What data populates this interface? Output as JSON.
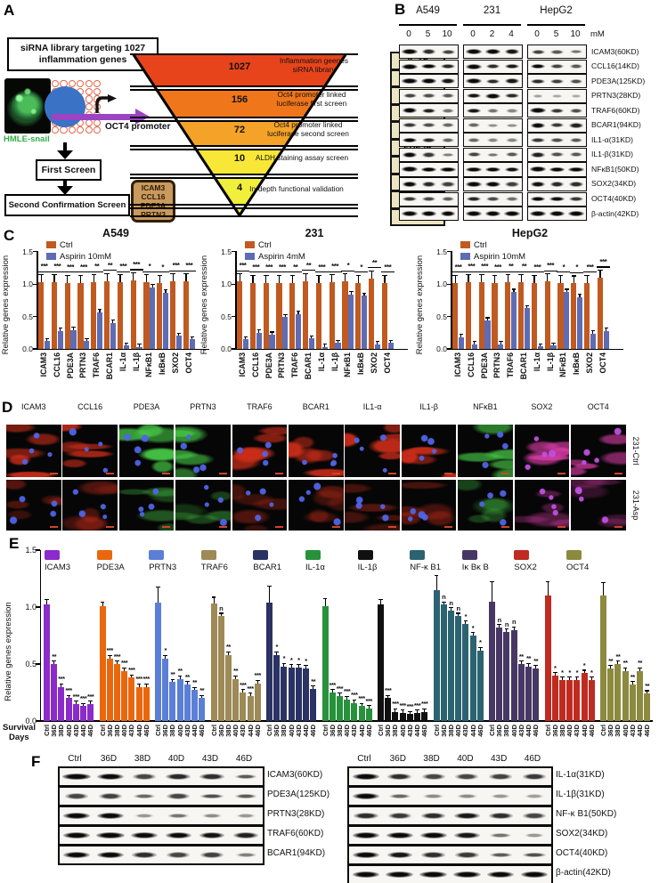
{
  "panels": {
    "A": "A",
    "B": "B",
    "C": "C",
    "D": "D",
    "E": "E",
    "F": "F"
  },
  "panelA": {
    "library_box": [
      "siRNA library targeting 1027",
      "inflammation genes"
    ],
    "cell_label": "HMLE-snail",
    "promoter_label": "OCT4 promoter",
    "flow": [
      "First Screen",
      "Second Confirmation Screen"
    ],
    "hit_box": [
      "ICAM3",
      "CCL16",
      "PDE3A",
      "PRTN3"
    ],
    "funnel": {
      "colors": [
        "#e8441b",
        "#f0761b",
        "#f4a328",
        "#f8e737",
        "#f0ef3b"
      ],
      "levels": [
        {
          "count": "1027",
          "desc": "Inflammation geenes siRNA library"
        },
        {
          "count": "156",
          "desc": "Oct4 promoter linked luciferase first screen"
        },
        {
          "count": "72",
          "desc": "Oct4 promoter linked luciferase second  screen"
        },
        {
          "count": "10",
          "desc": "ALDH staining assay screen"
        },
        {
          "count": "4",
          "desc": "In-depth functional validation"
        }
      ]
    },
    "gene_list": [
      "IL-1α",
      "IL-1β",
      "ICAM3",
      "CCL16",
      "TRAF6",
      "PDE3A",
      "PRTN3",
      "NFκB1",
      "IκBκB",
      "BCAR1"
    ]
  },
  "panelB": {
    "cell_lines": [
      "A549",
      "231",
      "HepG2"
    ],
    "doses": [
      [
        "0",
        "5",
        "10"
      ],
      [
        "0",
        "2",
        "4"
      ],
      [
        "0",
        "5",
        "10"
      ]
    ],
    "dose_unit": "mM",
    "rows": [
      {
        "label": "ICAM3(60KD)",
        "bands": [
          0.92,
          0.6,
          0.5,
          0.92,
          0.85,
          0.7,
          0.5,
          0.42,
          0.3
        ]
      },
      {
        "label": "CCL16(14KD)",
        "bands": [
          0.9,
          0.8,
          0.62,
          0.85,
          0.6,
          0.68,
          0.8,
          0.5,
          0.42
        ]
      },
      {
        "label": "PDE3A(125KD)",
        "bands": [
          1,
          0.92,
          0.7,
          0.85,
          0.6,
          0.7,
          0.6,
          0.52,
          0.45
        ]
      },
      {
        "label": "PRTN3(28KD)",
        "bands": [
          0.5,
          0.45,
          0.4,
          0.7,
          0.8,
          0.6,
          0.12,
          0.08,
          0.08
        ]
      },
      {
        "label": "TRAF6(60KD)",
        "bands": [
          0.8,
          0.65,
          0.3,
          0.7,
          0.3,
          0.22,
          0.95,
          0.55,
          0.45
        ]
      },
      {
        "label": "BCAR1(94KD)",
        "bands": [
          0.55,
          0.45,
          0.35,
          0.35,
          0.18,
          0.18,
          0.8,
          0.55,
          0.65
        ]
      },
      {
        "label": "IL1-α(31KD)",
        "bands": [
          0.8,
          0.6,
          0.35,
          0.35,
          0.22,
          0.22,
          0.55,
          0.45,
          0.4
        ]
      },
      {
        "label": "IL1-β(31KD)",
        "bands": [
          0.75,
          0.55,
          0.25,
          0.5,
          0.3,
          0.42,
          0.65,
          0.45,
          0.42
        ]
      },
      {
        "label": "NFκB1(50KD)",
        "bands": [
          1,
          0.95,
          0.9,
          0.95,
          0.85,
          0.72,
          1,
          0.95,
          0.9
        ]
      },
      {
        "label": "SOX2(34KD)",
        "bands": [
          0.82,
          0.62,
          0.52,
          0.9,
          0.8,
          0.52,
          0.72,
          0.62,
          0.6
        ]
      },
      {
        "label": "OCT4(40KD)",
        "bands": [
          0.55,
          0.48,
          0.38,
          0.62,
          0.48,
          0.32,
          0.82,
          0.72,
          0.55
        ]
      },
      {
        "label": "β-actin(42KD)",
        "bands": [
          0.85,
          0.85,
          0.82,
          0.88,
          0.88,
          0.85,
          0.92,
          0.9,
          0.88
        ]
      }
    ]
  },
  "panelD": {
    "columns": [
      "ICAM3",
      "CCL16",
      "PDE3A",
      "PRTN3",
      "TRAF6",
      "BCAR1",
      "IL1-α",
      "IL1-β",
      "NFκB1",
      "SOX2",
      "OCT4"
    ],
    "row_labels": [
      "231-Ctrl",
      "231-Asp"
    ],
    "stains": [
      "red",
      "red",
      "green",
      "green",
      "red",
      "red",
      "red",
      "red",
      "green",
      "magenta",
      "magenta"
    ],
    "stain_rgb": {
      "red": "205,45,25",
      "green": "70,200,70",
      "magenta": "215,60,165"
    }
  },
  "panelF": {
    "left": {
      "lanes": [
        "Ctrl",
        "36D",
        "38D",
        "40D",
        "43D",
        "46D"
      ],
      "rows": [
        {
          "label": "ICAM3(60KD)",
          "bands": [
            1,
            0.8,
            0.5,
            0.62,
            0.6,
            0.4
          ]
        },
        {
          "label": "PDE3A(125KD)",
          "bands": [
            0.5,
            0.52,
            0.35,
            0.5,
            0.45,
            0.4
          ]
        },
        {
          "label": "PRTN3(28KD)",
          "bands": [
            0.9,
            0.85,
            0.15,
            0.3,
            0.2,
            0.15
          ]
        },
        {
          "label": "TRAF6(60KD)",
          "bands": [
            0.9,
            0.95,
            0.8,
            0.75,
            0.72,
            0.65
          ]
        },
        {
          "label": "BCAR1(94KD)",
          "bands": [
            0.8,
            0.85,
            0.6,
            0.5,
            0.52,
            0.25
          ]
        }
      ]
    },
    "right": {
      "lanes": [
        "Ctrl",
        "36D",
        "38D",
        "40D",
        "43D",
        "46D"
      ],
      "rows": [
        {
          "label": "IL-1α(31KD)",
          "bands": [
            0.9,
            0.6,
            0.5,
            0.5,
            0.52,
            0.55
          ]
        },
        {
          "label": "IL-1β(31KD)",
          "bands": [
            0.8,
            0.35,
            0.2,
            0.2,
            0.15,
            0.12
          ]
        },
        {
          "label": "NF-κ B1(50KD)",
          "bands": [
            0.6,
            0.55,
            0.6,
            0.7,
            0.6,
            0.5
          ]
        },
        {
          "label": "SOX2(34KD)",
          "bands": [
            0.9,
            0.85,
            0.85,
            0.7,
            0.3,
            0.15
          ]
        },
        {
          "label": "OCT4(40KD)",
          "bands": [
            0.8,
            0.7,
            0.6,
            0.55,
            0.4,
            0.45
          ]
        },
        {
          "label": "β-actin(42KD)",
          "bands": [
            0.9,
            0.9,
            0.9,
            0.9,
            0.85,
            0.9
          ]
        }
      ]
    }
  },
  "chart_data": [
    {
      "type": "bar",
      "panel": "C1",
      "title": "A549",
      "ylabel": "Relative genes expression",
      "ylim": [
        0,
        1.5
      ],
      "yticks": [
        0,
        0.5,
        1,
        1.5
      ],
      "legend": [
        "Ctrl",
        "Aspirin 10mM"
      ],
      "colors": {
        "ctrl": "#c05a20",
        "treated": "#5e6cb4"
      },
      "categories": [
        "ICAM3",
        "CCL16",
        "PDE3A",
        "PRTN3",
        "TRAF6",
        "BCAR1",
        "IL-1α",
        "IL-1β",
        "NFκB1",
        "IκBκB",
        "SXO2",
        "OCT4"
      ],
      "ctrl": [
        1.03,
        1.03,
        1.02,
        1.02,
        1.03,
        1.05,
        1.03,
        1.06,
        1.03,
        1.02,
        1.04,
        1.04
      ],
      "treated": [
        0.12,
        0.28,
        0.29,
        0.12,
        0.57,
        0.4,
        0.05,
        0.03,
        0.95,
        0.87,
        0.2,
        0.15
      ],
      "sig": [
        "***",
        "***",
        "***",
        "***",
        "**",
        "**",
        "***",
        "***",
        "*",
        "*",
        "***",
        "***"
      ]
    },
    {
      "type": "bar",
      "panel": "C2",
      "title": "231",
      "ylabel": "Relative genes expression",
      "ylim": [
        0,
        1.5
      ],
      "yticks": [
        0,
        0.5,
        1,
        1.5
      ],
      "legend": [
        "Ctrl",
        "Aspirin 4mM"
      ],
      "colors": {
        "ctrl": "#c05a20",
        "treated": "#5e6cb4"
      },
      "categories": [
        "ICAM3",
        "CCL16",
        "PDE3A",
        "PRTN3",
        "TRAF6",
        "BCAR1",
        "IL-1α",
        "IL-1β",
        "NFκB1",
        "IκBκB",
        "SXO2",
        "OCT4"
      ],
      "ctrl": [
        1.04,
        1.02,
        1.02,
        1.02,
        1.02,
        1.05,
        1.02,
        1.03,
        1.04,
        1.02,
        1.09,
        1.02
      ],
      "treated": [
        0.15,
        0.25,
        0.22,
        0.49,
        0.54,
        0.16,
        0.03,
        0.09,
        0.84,
        0.82,
        0.07,
        0.09
      ],
      "sig": [
        "***",
        "***",
        "***",
        "***",
        "**",
        "**",
        "***",
        "***",
        "*",
        "*",
        "**",
        "***"
      ]
    },
    {
      "type": "bar",
      "panel": "C3",
      "title": "HepG2",
      "ylabel": "Relative genes expression",
      "ylim": [
        0,
        1.5
      ],
      "yticks": [
        0,
        0.5,
        1,
        1.5
      ],
      "legend": [
        "Ctrl",
        "Aspirin 10mM"
      ],
      "colors": {
        "ctrl": "#c05a20",
        "treated": "#5e6cb4"
      },
      "categories": [
        "ICAM3",
        "CCL16",
        "PDE3A",
        "PRTN3",
        "TRAF6",
        "BCAR1",
        "IL-1α",
        "IL-1β",
        "NFκB1",
        "IκBκB",
        "SXO2",
        "OCT4"
      ],
      "ctrl": [
        1.02,
        1.03,
        1.03,
        1.02,
        1.03,
        1.03,
        1.02,
        1.04,
        1.02,
        1.01,
        1.02,
        1.1
      ],
      "treated": [
        0.18,
        0.07,
        0.44,
        0.07,
        0.88,
        0.63,
        0.04,
        0.05,
        0.88,
        0.8,
        0.24,
        0.28
      ],
      "sig": [
        "***",
        "***",
        "***",
        "***",
        "**",
        "**",
        "***",
        "***",
        "*",
        "*",
        "***",
        "***"
      ]
    },
    {
      "type": "bar",
      "panel": "E",
      "ylabel": "Relative genes expression",
      "xlabel": "Survival Days",
      "ylim": [
        0,
        1.5
      ],
      "yticks": [
        0,
        0.5,
        1,
        1.5
      ],
      "categories": [
        "Ctrl",
        "36D",
        "38D",
        "40D",
        "43D",
        "44D",
        "46D"
      ],
      "series": [
        {
          "name": "ICAM3",
          "color": "#8b2bc9",
          "ctrl_err": 0.05,
          "values": [
            1.02,
            0.5,
            0.3,
            0.2,
            0.15,
            0.13,
            0.15
          ],
          "sig": [
            "",
            "**",
            "***",
            "***",
            "***",
            "***",
            "***"
          ]
        },
        {
          "name": "PDE3A",
          "color": "#ea670e",
          "ctrl_err": 0.04,
          "values": [
            1.01,
            0.55,
            0.5,
            0.44,
            0.38,
            0.3,
            0.3
          ],
          "sig": [
            "",
            "***",
            "***",
            "***",
            "***",
            "***",
            "***"
          ]
        },
        {
          "name": "PRTN3",
          "color": "#5c7fd6",
          "ctrl_err": 0.14,
          "values": [
            1.04,
            0.55,
            0.34,
            0.37,
            0.32,
            0.27,
            0.2
          ],
          "sig": [
            "",
            "*",
            "**",
            "**",
            "**",
            "**",
            "**"
          ]
        },
        {
          "name": "TRAF6",
          "color": "#9d8a57",
          "ctrl_err": 0.06,
          "values": [
            1.03,
            0.92,
            0.58,
            0.37,
            0.25,
            0.22,
            0.33
          ],
          "sig": [
            "",
            "n",
            "**",
            "**",
            "***",
            "***",
            "***"
          ]
        },
        {
          "name": "BCAR1",
          "color": "#2b3364",
          "ctrl_err": 0.15,
          "values": [
            1.04,
            0.58,
            0.48,
            0.47,
            0.47,
            0.46,
            0.28
          ],
          "sig": [
            "",
            "*",
            "*",
            "*",
            "*",
            "*",
            "**"
          ]
        },
        {
          "name": "IL-1α",
          "color": "#28913c",
          "ctrl_err": 0.07,
          "values": [
            1.01,
            0.25,
            0.22,
            0.19,
            0.16,
            0.13,
            0.11
          ],
          "sig": [
            "",
            "***",
            "***",
            "***",
            "***",
            "***",
            "***"
          ]
        },
        {
          "name": "IL-1β",
          "color": "#101010",
          "ctrl_err": 0.05,
          "values": [
            1.02,
            0.2,
            0.08,
            0.07,
            0.06,
            0.07,
            0.08
          ],
          "sig": [
            "",
            "***",
            "***",
            "***",
            "***",
            "***",
            "***"
          ]
        },
        {
          "name": "NF-κ B1",
          "color": "#2b6370",
          "ctrl_err": 0.13,
          "values": [
            1.15,
            1.02,
            0.97,
            0.92,
            0.85,
            0.75,
            0.62
          ],
          "sig": [
            "",
            "n",
            "n",
            "n",
            "*",
            "*",
            "*"
          ]
        },
        {
          "name": "Iκ Bκ B",
          "color": "#473764",
          "ctrl_err": 0.18,
          "values": [
            1.05,
            0.82,
            0.78,
            0.8,
            0.5,
            0.48,
            0.46
          ],
          "sig": [
            "",
            "n",
            "n",
            "n",
            "**",
            "**",
            "**"
          ]
        },
        {
          "name": "SOX2",
          "color": "#bf2b20",
          "ctrl_err": 0.13,
          "values": [
            1.1,
            0.4,
            0.36,
            0.36,
            0.36,
            0.42,
            0.36
          ],
          "sig": [
            "",
            "*",
            "*",
            "*",
            "*",
            "*",
            "*"
          ]
        },
        {
          "name": "OCT4",
          "color": "#8c8a3e",
          "ctrl_err": 0.12,
          "values": [
            1.1,
            0.46,
            0.5,
            0.44,
            0.32,
            0.44,
            0.24
          ],
          "sig": [
            "",
            "**",
            "**",
            "**",
            "**",
            "**",
            "**"
          ]
        }
      ]
    }
  ]
}
